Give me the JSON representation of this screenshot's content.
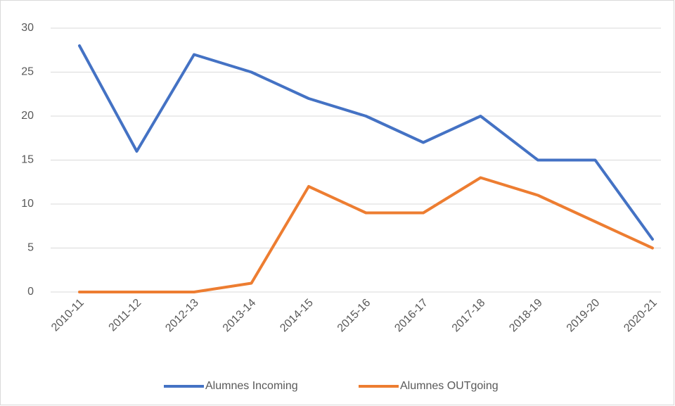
{
  "chart_data": {
    "type": "line",
    "categories": [
      "2010-11",
      "2011-12",
      "2012-13",
      "2013-14",
      "2014-15",
      "2015-16",
      "2016-17",
      "2017-18",
      "2018-19",
      "2019-20",
      "2020-21"
    ],
    "series": [
      {
        "name": "Alumnes Incoming",
        "color": "#4472c4",
        "values": [
          28,
          16,
          27,
          25,
          22,
          20,
          17,
          20,
          15,
          15,
          6
        ]
      },
      {
        "name": "Alumnes OUTgoing",
        "color": "#ed7d31",
        "values": [
          0,
          0,
          0,
          1,
          12,
          9,
          9,
          13,
          11,
          8,
          5
        ]
      }
    ],
    "ylim": [
      0,
      30
    ],
    "yticks": [
      0,
      5,
      10,
      15,
      20,
      25,
      30
    ],
    "grid": true,
    "legend": "bottom"
  }
}
